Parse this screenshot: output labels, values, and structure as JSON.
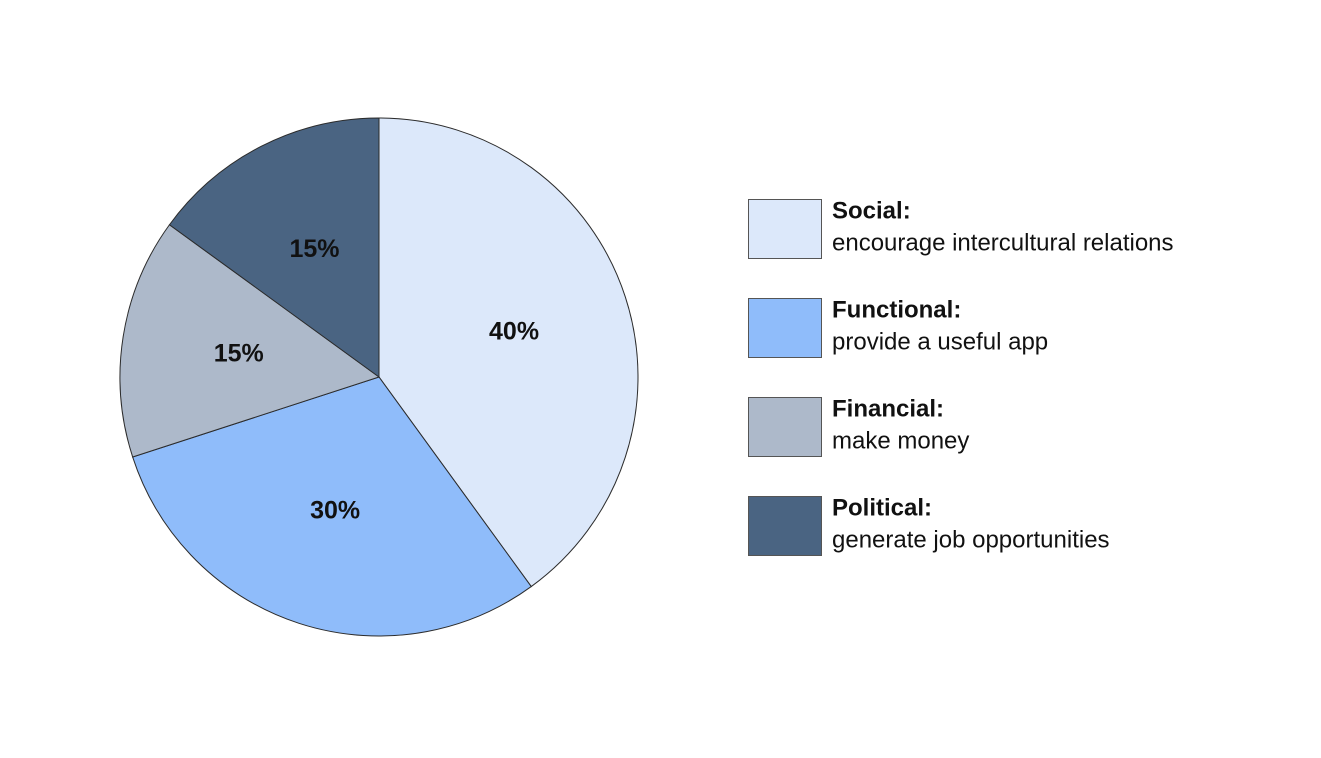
{
  "chart_data": {
    "type": "pie",
    "categories": [
      "Social:",
      "Functional:",
      "Financial:",
      "Political:"
    ],
    "descriptions": [
      "encourage intercultural relations",
      "provide a useful app",
      "make money",
      "generate job opportunities"
    ],
    "values": [
      40,
      30,
      15,
      15
    ],
    "value_labels": [
      "40%",
      "30%",
      "15%",
      "15%"
    ],
    "colors": [
      "#dce8fa",
      "#8fbcfa",
      "#adb9ca",
      "#4a6482"
    ],
    "legend": "right"
  }
}
